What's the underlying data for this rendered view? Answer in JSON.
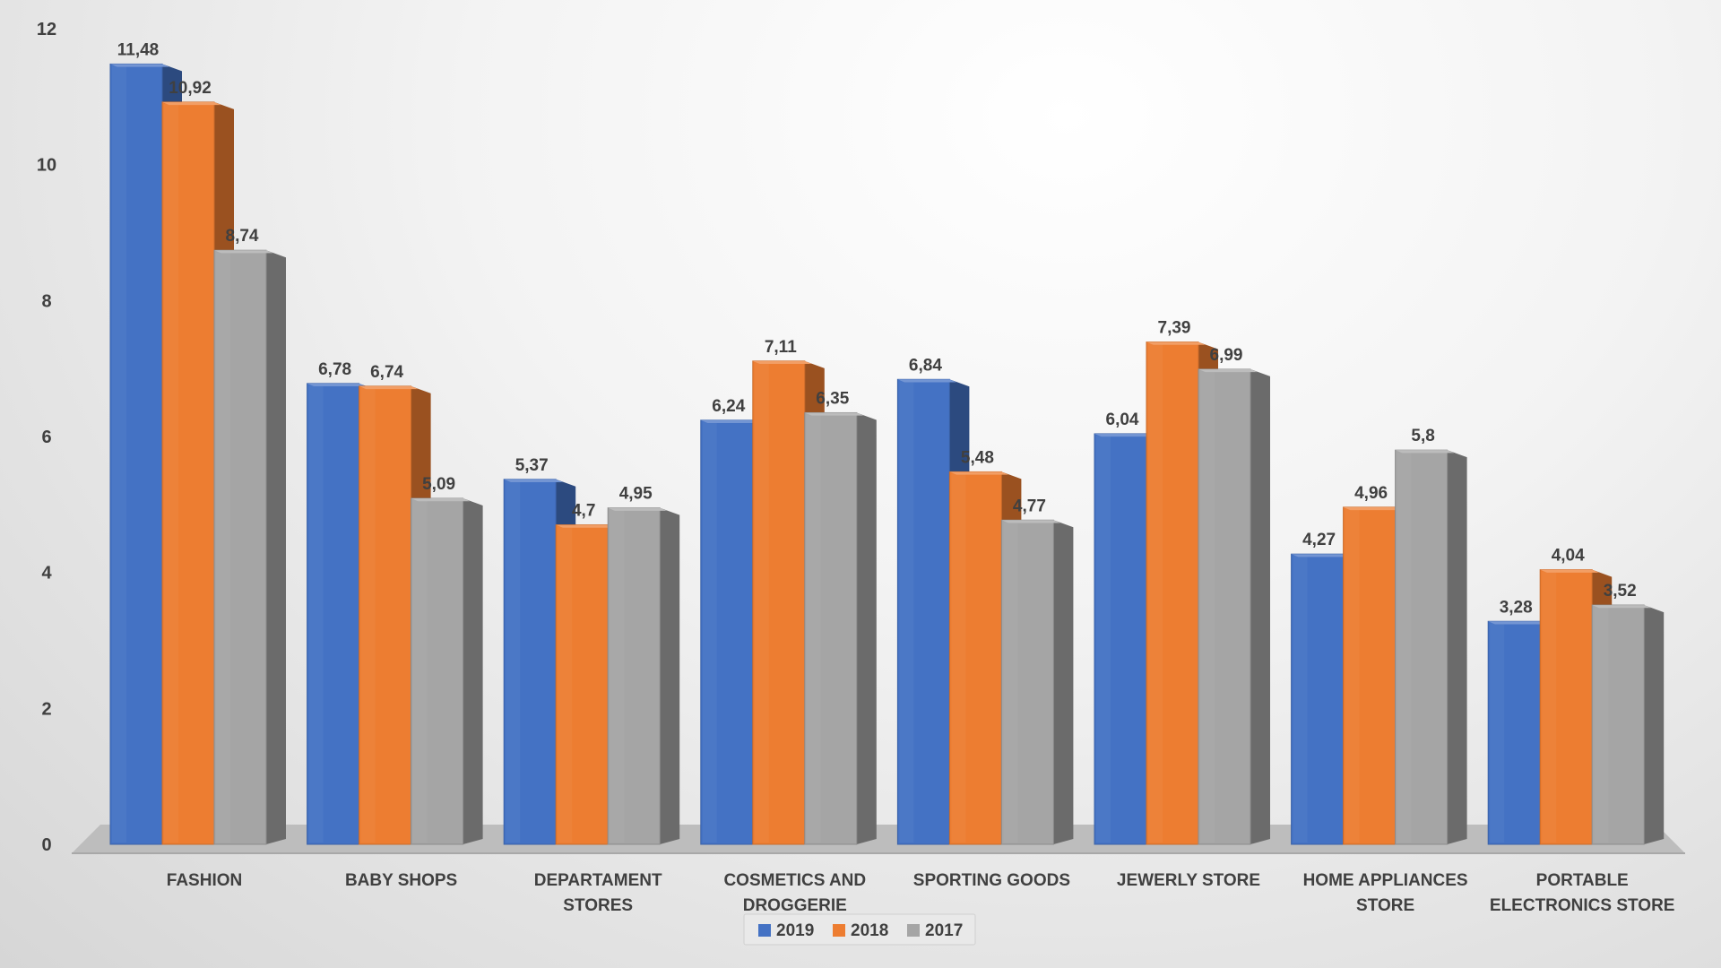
{
  "chart_data": {
    "type": "bar",
    "categories": [
      [
        "FASHION"
      ],
      [
        "BABY SHOPS"
      ],
      [
        "DEPARTAMENT",
        "STORES"
      ],
      [
        "COSMETICS AND",
        "DROGGERIE"
      ],
      [
        "SPORTING GOODS"
      ],
      [
        "JEWERLY STORE"
      ],
      [
        "HOME APPLIANCES",
        "STORE"
      ],
      [
        "PORTABLE",
        "ELECTRONICS STORE"
      ]
    ],
    "series": [
      {
        "name": "2019",
        "color": "#4472C4",
        "values": [
          11.48,
          6.78,
          5.37,
          6.24,
          6.84,
          6.04,
          4.27,
          3.28
        ],
        "labels": [
          "11,48",
          "6,78",
          "5,37",
          "6,24",
          "6,84",
          "6,04",
          "4,27",
          "3,28"
        ]
      },
      {
        "name": "2018",
        "color": "#ED7D31",
        "values": [
          10.92,
          6.74,
          4.7,
          7.11,
          5.48,
          7.39,
          4.96,
          4.04
        ],
        "labels": [
          "10,92",
          "6,74",
          "4,7",
          "7,11",
          "5,48",
          "7,39",
          "4,96",
          "4,04"
        ]
      },
      {
        "name": "2017",
        "color": "#A5A5A5",
        "values": [
          8.74,
          5.09,
          4.95,
          6.35,
          4.77,
          6.99,
          5.8,
          3.52
        ],
        "labels": [
          "8,74",
          "5,09",
          "4,95",
          "6,35",
          "4,77",
          "6,99",
          "5,8",
          "3,52"
        ]
      }
    ],
    "ylim": [
      0,
      12
    ],
    "yticks": [
      "0",
      "2",
      "4",
      "6",
      "8",
      "10",
      "12"
    ],
    "legend_position": "bottom",
    "grid": false,
    "style": "3d-clustered-column"
  }
}
